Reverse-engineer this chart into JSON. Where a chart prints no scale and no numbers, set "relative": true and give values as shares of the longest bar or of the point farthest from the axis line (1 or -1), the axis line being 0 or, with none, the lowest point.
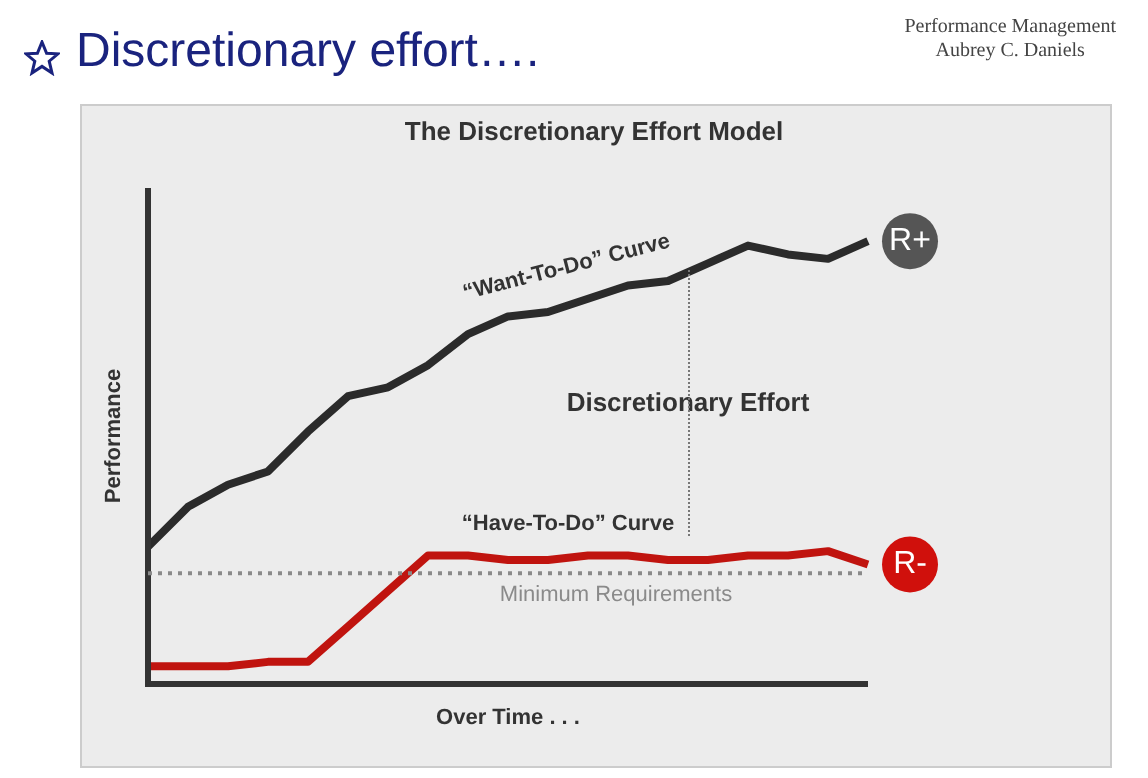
{
  "chart_data": {
    "type": "line",
    "title": "Discretionary effort….",
    "subtitle": "The Discretionary Effort Model",
    "xlabel": "Over Time . . .",
    "ylabel": "Performance",
    "relative": true,
    "tick_labels": false,
    "legend": false,
    "marker": "none",
    "line_style": "solid",
    "categories": [
      null,
      null,
      null,
      null,
      null,
      null,
      null,
      null,
      null,
      null,
      null,
      null,
      null,
      null,
      null,
      null,
      null,
      null,
      null
    ],
    "series": [
      {
        "name": "“Want-To-Do” Curve",
        "color": "#2b2b2b",
        "values": [
          0.31,
          0.4,
          0.45,
          0.48,
          0.57,
          0.65,
          0.67,
          0.72,
          0.79,
          0.83,
          0.84,
          0.87,
          0.9,
          0.91,
          0.95,
          0.99,
          0.97,
          0.96,
          1.0
        ]
      },
      {
        "name": "“Have-To-Do” Curve",
        "color": "#c0140f",
        "values": [
          0.04,
          0.04,
          0.04,
          0.05,
          0.05,
          0.13,
          0.21,
          0.29,
          0.29,
          0.28,
          0.28,
          0.29,
          0.29,
          0.28,
          0.28,
          0.29,
          0.29,
          0.3,
          0.27
        ]
      }
    ],
    "ref_lines": [
      {
        "axis": "y",
        "value": 0.25,
        "label": "Minimum Requirements",
        "color": "#8a8a8a",
        "line_style": "dotted"
      }
    ],
    "annotations": [
      "Performance Management",
      "Aubrey C. Daniels",
      "Discretionary Effort",
      "R+",
      "R-"
    ]
  }
}
